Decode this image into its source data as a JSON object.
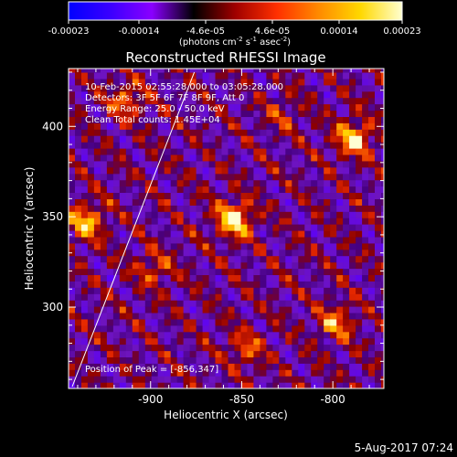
{
  "colorbar": {
    "ticks": [
      "-0.00023",
      "-0.00014",
      "-4.6e-05",
      "4.6e-05",
      "0.00014",
      "0.00023"
    ],
    "units_prefix": "(photons cm",
    "units_exp1": "-2",
    "units_mid": " s",
    "units_exp2": "-1",
    "units_mid2": " asec",
    "units_exp3": "-2",
    "units_suffix": ")",
    "colors": [
      "#0000ff",
      "#3a00ff",
      "#8a00ff",
      "#000000",
      "#a00000",
      "#ff3000",
      "#ff8a00",
      "#ffd800",
      "#ffffd0"
    ]
  },
  "chart_data": {
    "type": "heatmap",
    "title": "Reconstructed RHESSI Image",
    "xlabel": "Heliocentric X (arcsec)",
    "ylabel": "Heliocentric Y (arcsec)",
    "x_ticks": [
      "-900",
      "-850",
      "-800"
    ],
    "x_tick_values": [
      -900,
      -850,
      -800
    ],
    "y_ticks": [
      "300",
      "350",
      "400"
    ],
    "y_tick_values": [
      300,
      350,
      400
    ],
    "xlim": [
      -945,
      -772
    ],
    "ylim": [
      255,
      432
    ],
    "annotations": [
      "10-Feb-2015 02:55:28.000 to 03:05:28.000",
      "Detectors: 3F 5F 6F 7F 8F 9F, Att 0",
      "Energy Range: 25.0 - 50.0 keV",
      "Clean     Total counts: 1.45E+04"
    ],
    "peak_label": "Position of Peak = [-856,347]",
    "sources": [
      {
        "x": -856,
        "y": 347,
        "peak": 1.0
      },
      {
        "x": -790,
        "y": 392,
        "peak": 0.85
      },
      {
        "x": -937,
        "y": 346,
        "peak": 0.75
      },
      {
        "x": -915,
        "y": 413,
        "peak": 0.55
      },
      {
        "x": -800,
        "y": 290,
        "peak": 0.6
      },
      {
        "x": -850,
        "y": 275,
        "peak": 0.5
      },
      {
        "x": -900,
        "y": 320,
        "peak": 0.45
      },
      {
        "x": -830,
        "y": 405,
        "peak": 0.35
      }
    ],
    "limb_line": {
      "x": [
        -943,
        -876
      ],
      "y": [
        256,
        430
      ]
    }
  },
  "footer": {
    "date": "5-Aug-2017 07:24"
  }
}
